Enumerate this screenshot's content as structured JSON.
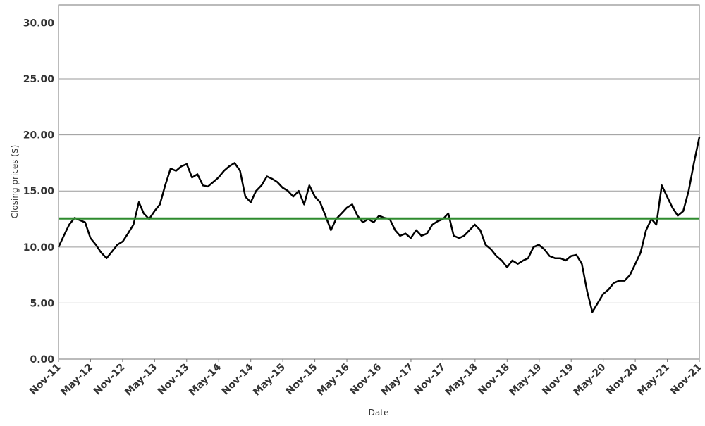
{
  "chart_data": {
    "type": "line",
    "xlabel": "Date",
    "ylabel": "Closing prices ($)",
    "ylim": [
      0,
      31.6
    ],
    "xlim": [
      "2011-11-01",
      "2021-11-01"
    ],
    "y_ticks": [
      "0.00",
      "5.00",
      "10.00",
      "15.00",
      "20.00",
      "25.00",
      "30.00"
    ],
    "y_tick_values": [
      0,
      5,
      10,
      15,
      20,
      25,
      30
    ],
    "x_ticks": [
      "Nov-11",
      "May-12",
      "Nov-12",
      "May-13",
      "Nov-13",
      "May-14",
      "Nov-14",
      "May-15",
      "Nov-15",
      "May-16",
      "Nov-16",
      "May-17",
      "Nov-17",
      "May-18",
      "Nov-18",
      "May-19",
      "Nov-19",
      "May-20",
      "Nov-20",
      "May-21",
      "Nov-21"
    ],
    "grid": "horizontal",
    "legend": "none",
    "series": [
      {
        "color": "#000000",
        "x": [
          "2011-11-01",
          "2011-12-01",
          "2012-01-01",
          "2012-02-01",
          "2012-03-01",
          "2012-04-01",
          "2012-05-01",
          "2012-06-01",
          "2012-07-01",
          "2012-08-01",
          "2012-09-01",
          "2012-10-01",
          "2012-11-01",
          "2012-12-01",
          "2013-01-01",
          "2013-02-01",
          "2013-03-01",
          "2013-04-01",
          "2013-05-01",
          "2013-06-01",
          "2013-07-01",
          "2013-08-01",
          "2013-09-01",
          "2013-10-01",
          "2013-11-01",
          "2013-12-01",
          "2014-01-01",
          "2014-02-01",
          "2014-03-01",
          "2014-04-01",
          "2014-05-01",
          "2014-06-01",
          "2014-07-01",
          "2014-08-01",
          "2014-09-01",
          "2014-10-01",
          "2014-11-01",
          "2014-12-01",
          "2015-01-01",
          "2015-02-01",
          "2015-03-01",
          "2015-04-01",
          "2015-05-01",
          "2015-06-01",
          "2015-07-01",
          "2015-08-01",
          "2015-09-01",
          "2015-10-01",
          "2015-11-01",
          "2015-12-01",
          "2016-01-01",
          "2016-02-01",
          "2016-03-01",
          "2016-04-01",
          "2016-05-01",
          "2016-06-01",
          "2016-07-01",
          "2016-08-01",
          "2016-09-01",
          "2016-10-01",
          "2016-11-01",
          "2016-12-01",
          "2017-01-01",
          "2017-02-01",
          "2017-03-01",
          "2017-04-01",
          "2017-05-01",
          "2017-06-01",
          "2017-07-01",
          "2017-08-01",
          "2017-09-01",
          "2017-10-01",
          "2017-11-01",
          "2017-12-01",
          "2018-01-01",
          "2018-02-01",
          "2018-03-01",
          "2018-04-01",
          "2018-05-01",
          "2018-06-01",
          "2018-07-01",
          "2018-08-01",
          "2018-09-01",
          "2018-10-01",
          "2018-11-01",
          "2018-12-01",
          "2019-01-01",
          "2019-02-01",
          "2019-03-01",
          "2019-04-01",
          "2019-05-01",
          "2019-06-01",
          "2019-07-01",
          "2019-08-01",
          "2019-09-01",
          "2019-10-01",
          "2019-11-01",
          "2019-12-01",
          "2020-01-01",
          "2020-02-01",
          "2020-03-01",
          "2020-04-01",
          "2020-05-01",
          "2020-06-01",
          "2020-07-01",
          "2020-08-01",
          "2020-09-01",
          "2020-10-01",
          "2020-11-01",
          "2020-12-01",
          "2021-01-01",
          "2021-02-01",
          "2021-03-01",
          "2021-04-01",
          "2021-05-01",
          "2021-06-01",
          "2021-07-01",
          "2021-08-01",
          "2021-09-01",
          "2021-10-01",
          "2021-11-01"
        ],
        "values": [
          10.0,
          11.0,
          12.0,
          12.6,
          12.4,
          12.2,
          10.8,
          10.2,
          9.5,
          9.0,
          9.6,
          10.2,
          10.5,
          11.2,
          12.0,
          14.0,
          13.0,
          12.5,
          13.2,
          13.8,
          15.5,
          17.0,
          16.8,
          17.2,
          17.4,
          16.2,
          16.5,
          15.5,
          15.4,
          15.8,
          16.2,
          16.8,
          17.2,
          17.5,
          16.8,
          14.5,
          14.0,
          15.0,
          15.5,
          16.3,
          16.1,
          15.8,
          15.3,
          15.0,
          14.5,
          15.0,
          13.8,
          15.5,
          14.5,
          14.0,
          12.8,
          11.5,
          12.5,
          13.0,
          13.5,
          13.8,
          12.8,
          12.2,
          12.5,
          12.2,
          12.8,
          12.6,
          12.5,
          11.5,
          11.0,
          11.2,
          10.8,
          11.5,
          11.0,
          11.2,
          12.0,
          12.3,
          12.5,
          13.0,
          11.0,
          10.8,
          11.0,
          11.5,
          12.0,
          11.5,
          10.2,
          9.8,
          9.2,
          8.8,
          8.2,
          8.8,
          8.5,
          8.8,
          9.0,
          10.0,
          10.2,
          9.8,
          9.2,
          9.0,
          9.0,
          8.8,
          9.2,
          9.3,
          8.5,
          6.0,
          4.2,
          5.0,
          5.8,
          6.2,
          6.8,
          7.0,
          7.0,
          7.5,
          8.5,
          9.5,
          11.5,
          12.5,
          12.0,
          15.5,
          14.5,
          13.5,
          12.8,
          13.2,
          15.0,
          17.5,
          19.8
        ]
      }
    ],
    "reference_line": {
      "y": 12.55,
      "color": "#2e8b2e"
    }
  }
}
